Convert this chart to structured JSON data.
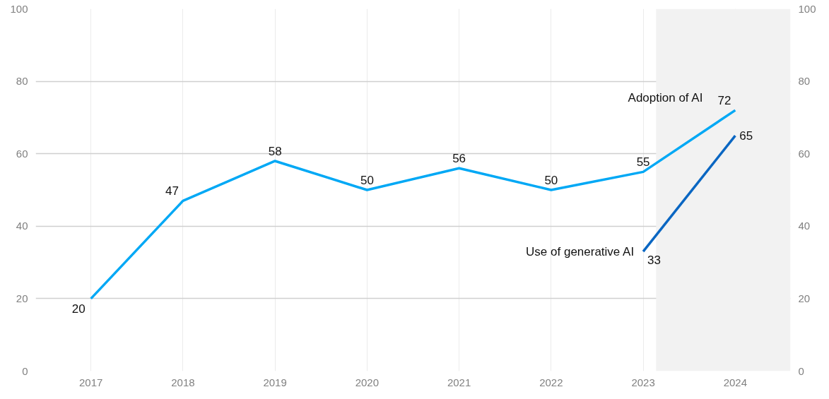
{
  "chart_data": {
    "type": "line",
    "x": [
      2017,
      2018,
      2019,
      2020,
      2021,
      2022,
      2023,
      2024
    ],
    "series": [
      {
        "name": "Adoption of AI",
        "color": "#00a8f5",
        "values": [
          20,
          47,
          58,
          50,
          56,
          50,
          55,
          72
        ]
      },
      {
        "name": "Use of generative AI",
        "color": "#0a66c2",
        "values": [
          null,
          null,
          null,
          null,
          null,
          null,
          33,
          65
        ]
      }
    ],
    "xlim": [
      2016.4,
      2024.6
    ],
    "xticks": [
      2017,
      2018,
      2019,
      2020,
      2021,
      2022,
      2023,
      2024
    ],
    "ylim": [
      0,
      100
    ],
    "yticks": [
      0,
      20,
      40,
      60,
      80,
      100
    ],
    "y2lim": [
      0,
      100
    ],
    "y2ticks": [
      0,
      20,
      40,
      60,
      80,
      100
    ],
    "bands": [
      {
        "axis": "x",
        "from": 2023.14,
        "to": 2024.6,
        "color": "#f2f2f2"
      }
    ],
    "data_labels": true,
    "grid": true,
    "marker": "none",
    "line_style": "solid"
  }
}
